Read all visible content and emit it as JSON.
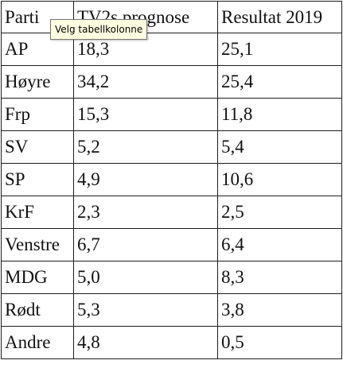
{
  "table": {
    "headers": [
      "Parti",
      "TV2s prognose",
      "Resultat 2019"
    ],
    "rows": [
      [
        "AP",
        "18,3",
        "25,1"
      ],
      [
        "Høyre",
        "34,2",
        "25,4"
      ],
      [
        "Frp",
        "15,3",
        "11,8"
      ],
      [
        "SV",
        "5,2",
        "5,4"
      ],
      [
        "SP",
        "4,9",
        "10,6"
      ],
      [
        "KrF",
        "2,3",
        "2,5"
      ],
      [
        "Venstre",
        "6,7",
        "6,4"
      ],
      [
        "MDG",
        "5,0",
        "8,3"
      ],
      [
        "Rødt",
        "5,3",
        "3,8"
      ],
      [
        "Andre",
        "4,8",
        "0,5"
      ]
    ]
  },
  "tooltip": {
    "text": "Velg tabellkolonne"
  }
}
